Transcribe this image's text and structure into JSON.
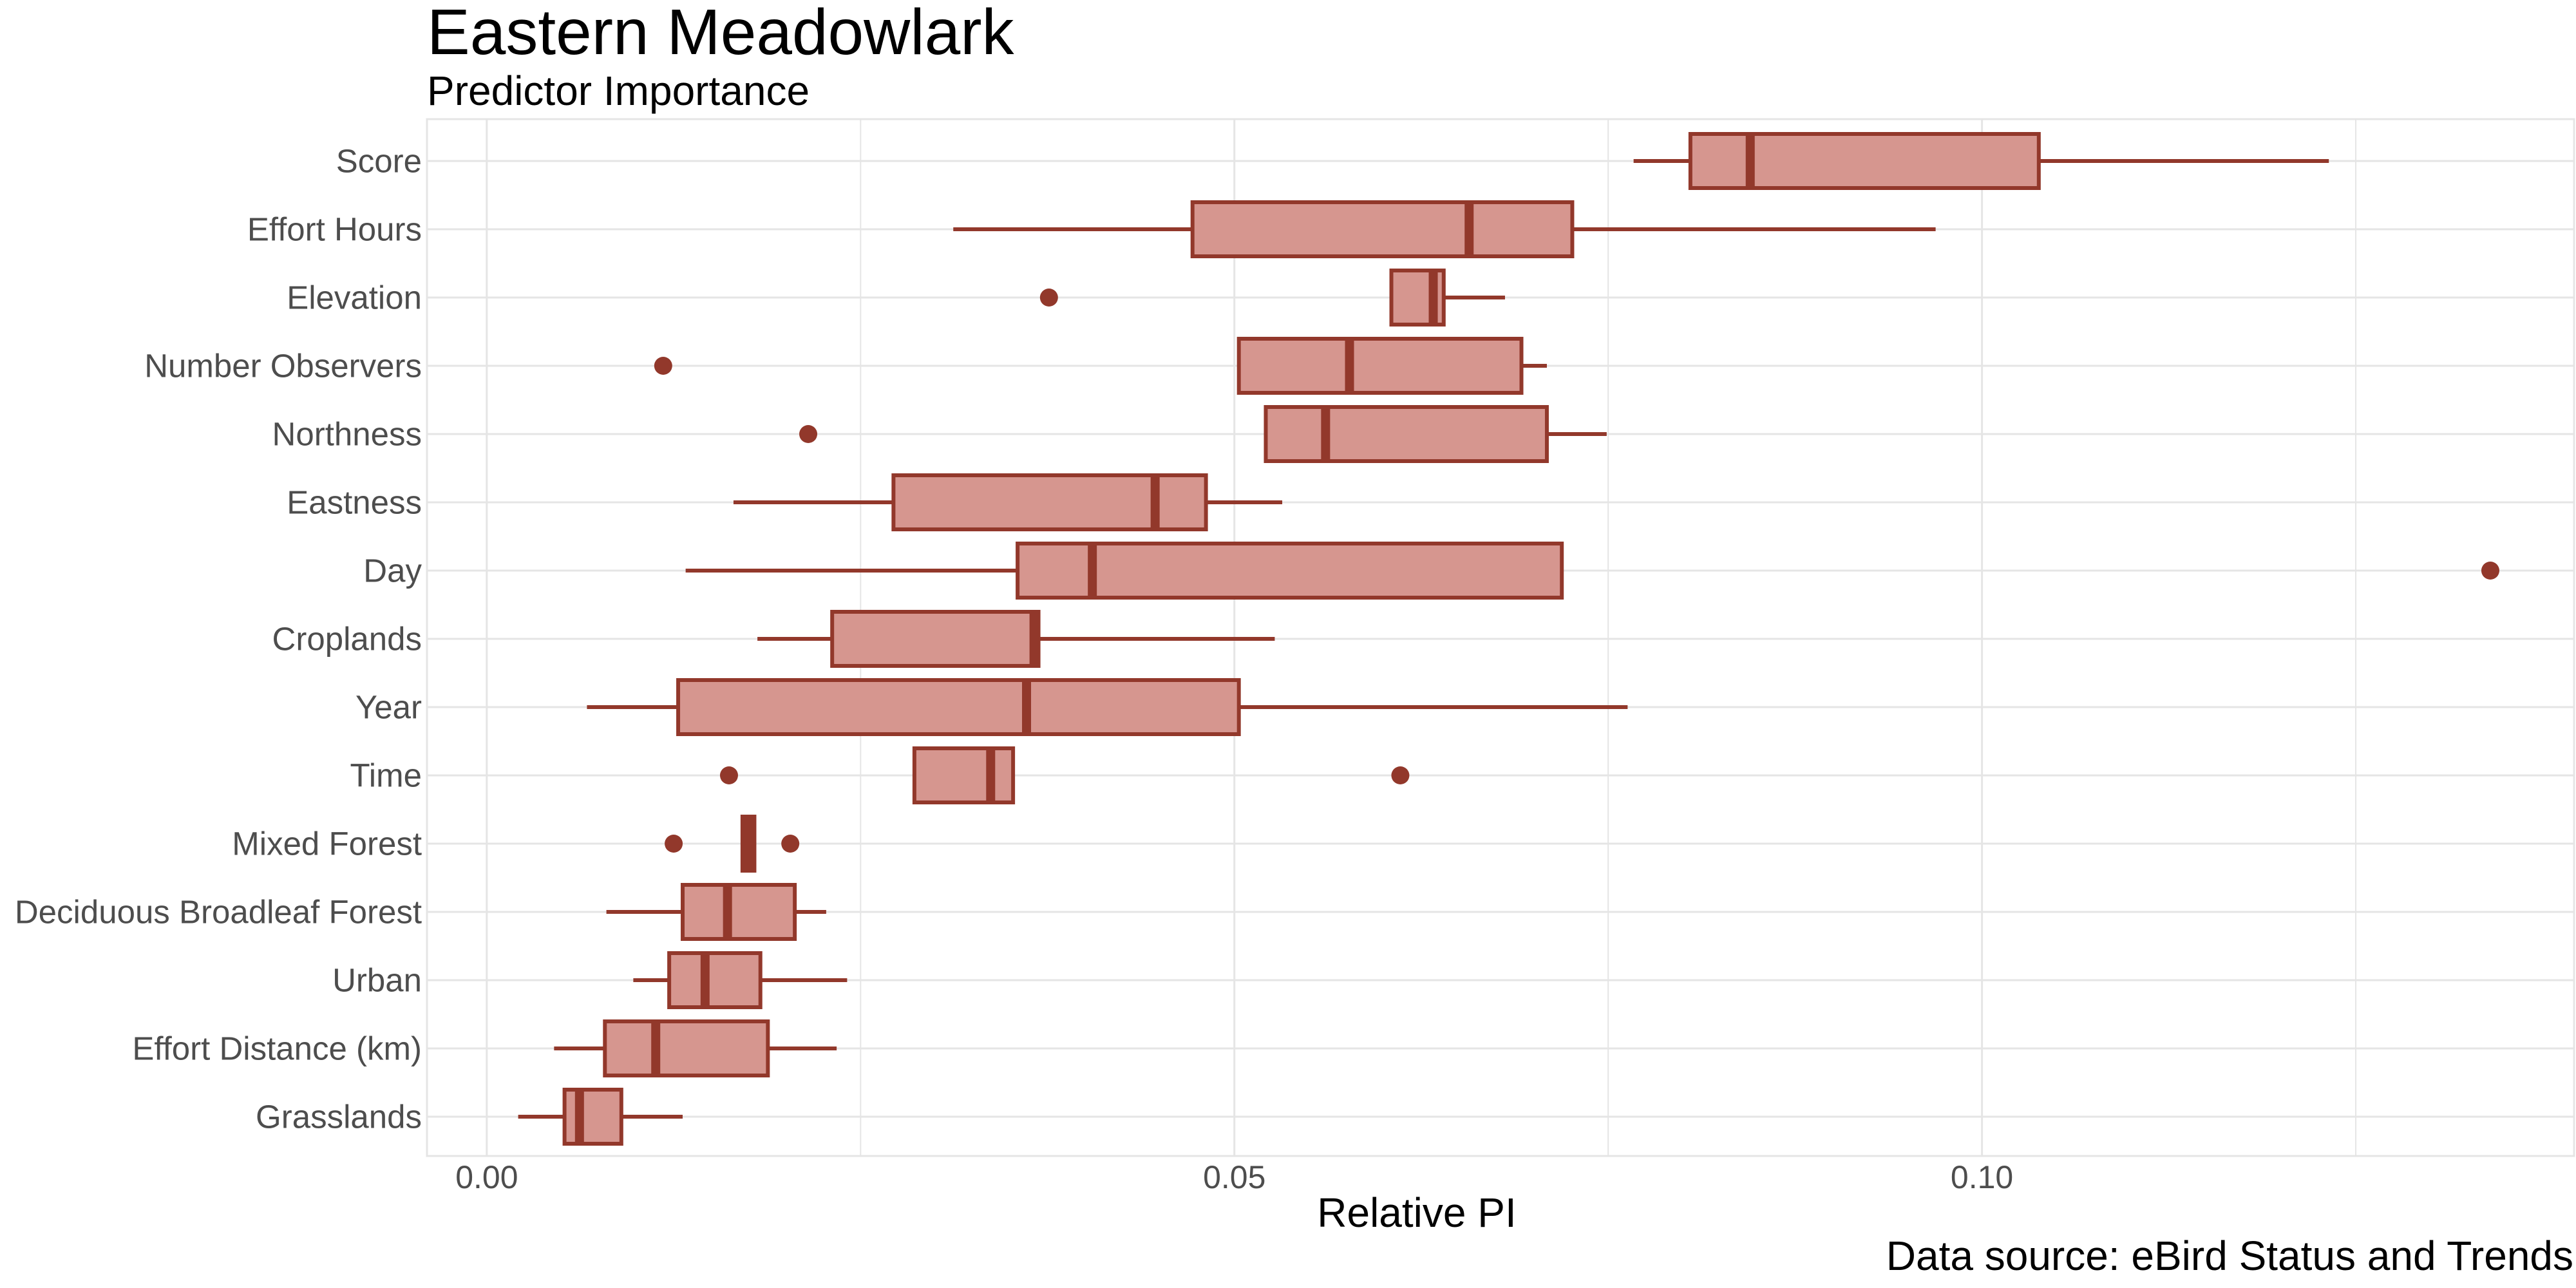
{
  "chart_data": {
    "type": "boxplot",
    "title": "Eastern Meadowlark",
    "subtitle": "Predictor Importance",
    "xlabel": "Relative PI",
    "caption": "Data source: eBird Status and Trends",
    "xlim": [
      -0.004,
      0.1396
    ],
    "x_ticks": [
      0.0,
      0.05,
      0.1
    ],
    "x_tick_labels": [
      "0.00",
      "0.05",
      "0.10"
    ],
    "grid": true,
    "colors": {
      "box_fill": "#d6968f",
      "box_stroke": "#92382b",
      "grid": "#e5e5e5",
      "tick_text": "#4d4d4d"
    },
    "categories": [
      "Score",
      "Effort Hours",
      "Elevation",
      "Number Observers",
      "Northness",
      "Eastness",
      "Day",
      "Croplands",
      "Year",
      "Time",
      "Mixed Forest",
      "Deciduous Broadleaf Forest",
      "Urban",
      "Effort Distance (km)",
      "Grasslands"
    ],
    "boxes": [
      {
        "label": "Score",
        "whisker_low": 0.0767,
        "q1": 0.0805,
        "median": 0.0845,
        "q3": 0.1038,
        "whisker_high": 0.1232,
        "outliers": []
      },
      {
        "label": "Effort Hours",
        "whisker_low": 0.0312,
        "q1": 0.0472,
        "median": 0.0657,
        "q3": 0.0726,
        "whisker_high": 0.0969,
        "outliers": []
      },
      {
        "label": "Elevation",
        "whisker_low": 0.0605,
        "q1": 0.0605,
        "median": 0.0633,
        "q3": 0.064,
        "whisker_high": 0.0681,
        "outliers": [
          0.0376
        ]
      },
      {
        "label": "Number Observers",
        "whisker_low": 0.0503,
        "q1": 0.0503,
        "median": 0.0577,
        "q3": 0.0692,
        "whisker_high": 0.0709,
        "outliers": [
          0.0118
        ]
      },
      {
        "label": "Northness",
        "whisker_low": 0.0521,
        "q1": 0.0521,
        "median": 0.0561,
        "q3": 0.0709,
        "whisker_high": 0.0749,
        "outliers": [
          0.0215
        ]
      },
      {
        "label": "Eastness",
        "whisker_low": 0.0165,
        "q1": 0.0272,
        "median": 0.0447,
        "q3": 0.0481,
        "whisker_high": 0.0532,
        "outliers": []
      },
      {
        "label": "Day",
        "whisker_low": 0.0133,
        "q1": 0.0355,
        "median": 0.0405,
        "q3": 0.0719,
        "whisker_high": 0.0719,
        "outliers": [
          0.134
        ]
      },
      {
        "label": "Croplands",
        "whisker_low": 0.0181,
        "q1": 0.0231,
        "median": 0.0366,
        "q3": 0.0369,
        "whisker_high": 0.0527,
        "outliers": []
      },
      {
        "label": "Year",
        "whisker_low": 0.0067,
        "q1": 0.0128,
        "median": 0.0361,
        "q3": 0.0503,
        "whisker_high": 0.0763,
        "outliers": []
      },
      {
        "label": "Time",
        "whisker_low": 0.0286,
        "q1": 0.0286,
        "median": 0.0337,
        "q3": 0.0352,
        "whisker_high": 0.0352,
        "outliers": [
          0.0162,
          0.0611
        ]
      },
      {
        "label": "Mixed Forest",
        "whisker_low": 0.0171,
        "q1": 0.0171,
        "median": 0.0175,
        "q3": 0.0179,
        "whisker_high": 0.0179,
        "outliers": [
          0.0125,
          0.0203
        ]
      },
      {
        "label": "Deciduous Broadleaf Forest",
        "whisker_low": 0.008,
        "q1": 0.0131,
        "median": 0.0161,
        "q3": 0.0206,
        "whisker_high": 0.0227,
        "outliers": []
      },
      {
        "label": "Urban",
        "whisker_low": 0.0098,
        "q1": 0.0122,
        "median": 0.0146,
        "q3": 0.0183,
        "whisker_high": 0.0241,
        "outliers": []
      },
      {
        "label": "Effort Distance (km)",
        "whisker_low": 0.0045,
        "q1": 0.0079,
        "median": 0.0113,
        "q3": 0.0188,
        "whisker_high": 0.0234,
        "outliers": []
      },
      {
        "label": "Grasslands",
        "whisker_low": 0.0021,
        "q1": 0.0052,
        "median": 0.0062,
        "q3": 0.009,
        "whisker_high": 0.0131,
        "outliers": []
      }
    ]
  }
}
